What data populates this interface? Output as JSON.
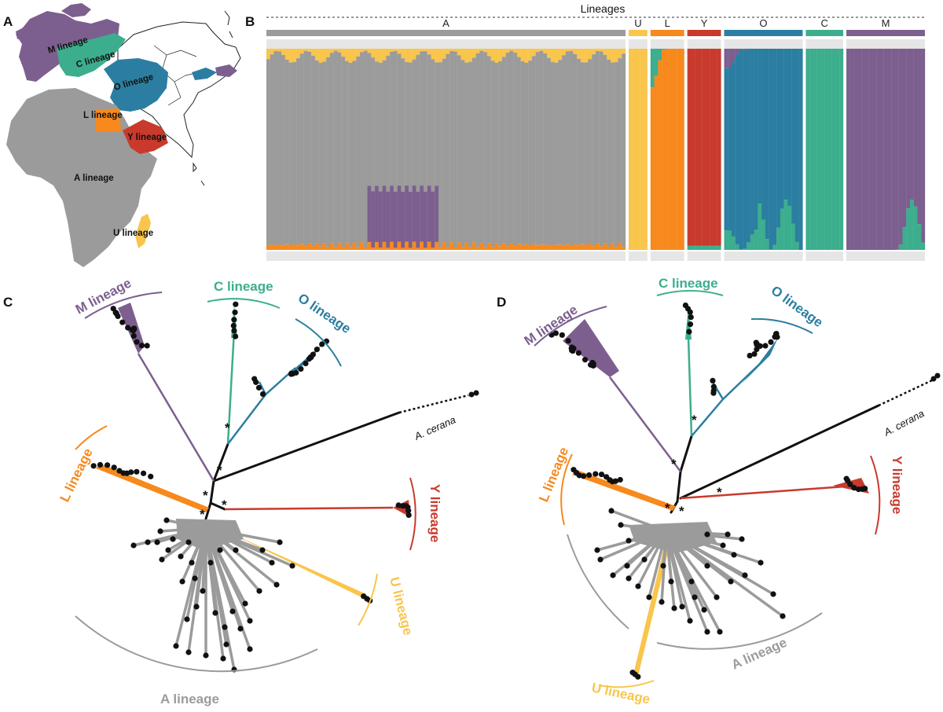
{
  "figure": {
    "panels": {
      "A": "A",
      "B": "B",
      "C": "C",
      "D": "D"
    },
    "colors": {
      "A": "#9b9b9b",
      "U": "#f9c54b",
      "L": "#f7891d",
      "Y": "#c93a2d",
      "O": "#2b7ea1",
      "C": "#3cae8d",
      "M": "#7c5f8f",
      "outgroup": "#111111",
      "tip": "#111111"
    },
    "map": {
      "labels": {
        "M": "M lineage",
        "C": "C lineage",
        "O": "O lineage",
        "L": "L lineage",
        "Y": "Y lineage",
        "A": "A lineage",
        "U": "U lineage"
      }
    },
    "structure": {
      "header": "Lineages",
      "groups": [
        {
          "key": "A",
          "label": "A",
          "n": 96
        },
        {
          "key": "U",
          "label": "U",
          "n": 5
        },
        {
          "key": "L",
          "label": "L",
          "n": 9
        },
        {
          "key": "Y",
          "label": "Y",
          "n": 9
        },
        {
          "key": "O",
          "label": "O",
          "n": 21
        },
        {
          "key": "C",
          "label": "C",
          "n": 10
        },
        {
          "key": "M",
          "label": "M",
          "n": 21
        }
      ]
    },
    "tree_C": {
      "labels": {
        "M": "M lineage",
        "C": "C lineage",
        "O": "O lineage",
        "L": "L lineage",
        "Y": "Y lineage",
        "U": "U lineage",
        "A": "A lineage"
      },
      "outgroup": "A. cerana",
      "stars": [
        "*",
        "*",
        "*",
        "*",
        "*"
      ]
    },
    "tree_D": {
      "labels": {
        "M": "M lineage",
        "C": "C lineage",
        "O": "O lineage",
        "L": "L lineage",
        "Y": "Y lineage",
        "U": "U lineage",
        "A": "A lineage"
      },
      "outgroup": "A. cerana",
      "stars": [
        "*",
        "*",
        "*",
        "*",
        "*"
      ]
    }
  }
}
